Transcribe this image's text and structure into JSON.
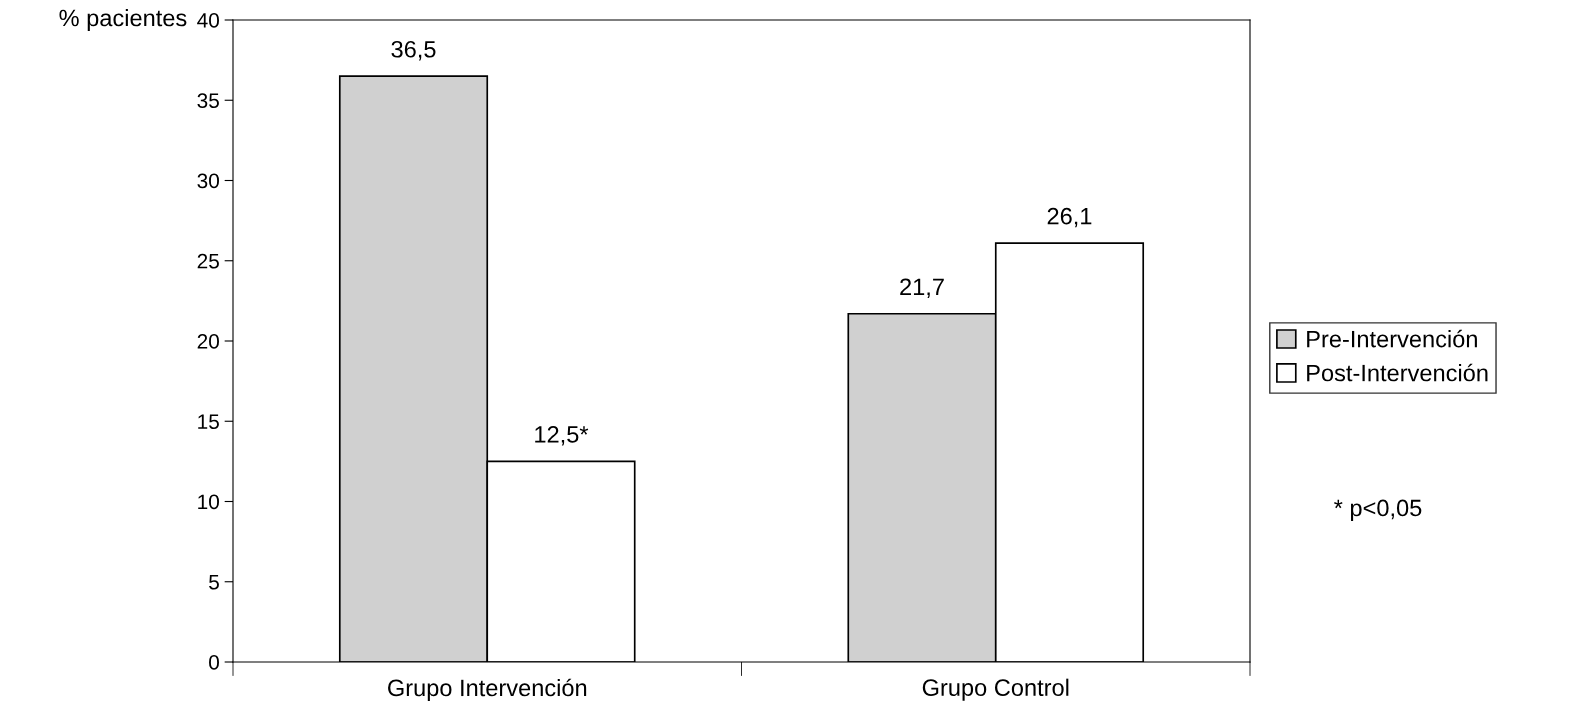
{
  "chart_data": {
    "type": "bar",
    "ylabel": "% pacientes",
    "categories": [
      "Grupo Intervención",
      "Grupo Control"
    ],
    "series": [
      {
        "name": "Pre-Intervención",
        "color": "#d0d0d0",
        "values": [
          36.5,
          21.7
        ],
        "value_labels": [
          "36,5",
          "21,7"
        ]
      },
      {
        "name": "Post-Intervención",
        "color": "#ffffff",
        "values": [
          12.5,
          26.1
        ],
        "value_labels": [
          "12,5*",
          "26,1"
        ]
      }
    ],
    "ylim": [
      0,
      40
    ],
    "yticks": [
      0,
      5,
      10,
      15,
      20,
      25,
      30,
      35,
      40
    ],
    "grid": false,
    "legend": "right",
    "annotations": [
      "* p<0,05"
    ]
  }
}
